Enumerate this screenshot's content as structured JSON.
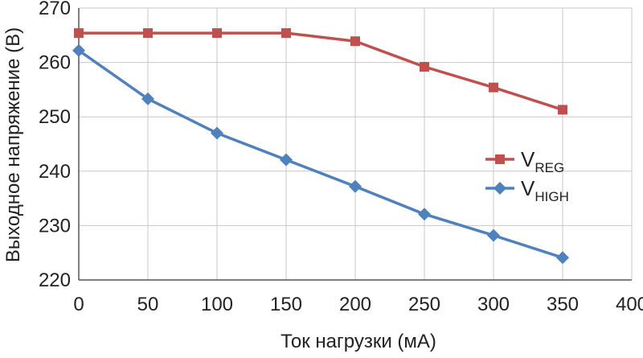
{
  "chart_data": {
    "type": "line",
    "xlabel": "Ток нагрузки (мА)",
    "ylabel": "Выходное напряжение (В)",
    "xlim": [
      0,
      400
    ],
    "ylim": [
      220,
      270
    ],
    "xticks": [
      0,
      50,
      100,
      150,
      200,
      250,
      300,
      350,
      400
    ],
    "yticks": [
      220,
      230,
      240,
      250,
      260,
      270
    ],
    "grid": true,
    "legend_position": "right",
    "series": [
      {
        "name": "V",
        "subscript": "REG",
        "color": "#c0504d",
        "marker": "square",
        "x": [
          0,
          50,
          100,
          150,
          200,
          250,
          300,
          350
        ],
        "y": [
          265.4,
          265.4,
          265.4,
          265.4,
          263.9,
          259.2,
          255.4,
          251.3
        ]
      },
      {
        "name": "V",
        "subscript": "HIGH",
        "color": "#4f81bd",
        "marker": "diamond",
        "x": [
          0,
          50,
          100,
          150,
          200,
          250,
          300,
          350
        ],
        "y": [
          262.2,
          253.3,
          247.0,
          242.1,
          237.2,
          232.1,
          228.2,
          224.1
        ]
      }
    ]
  }
}
